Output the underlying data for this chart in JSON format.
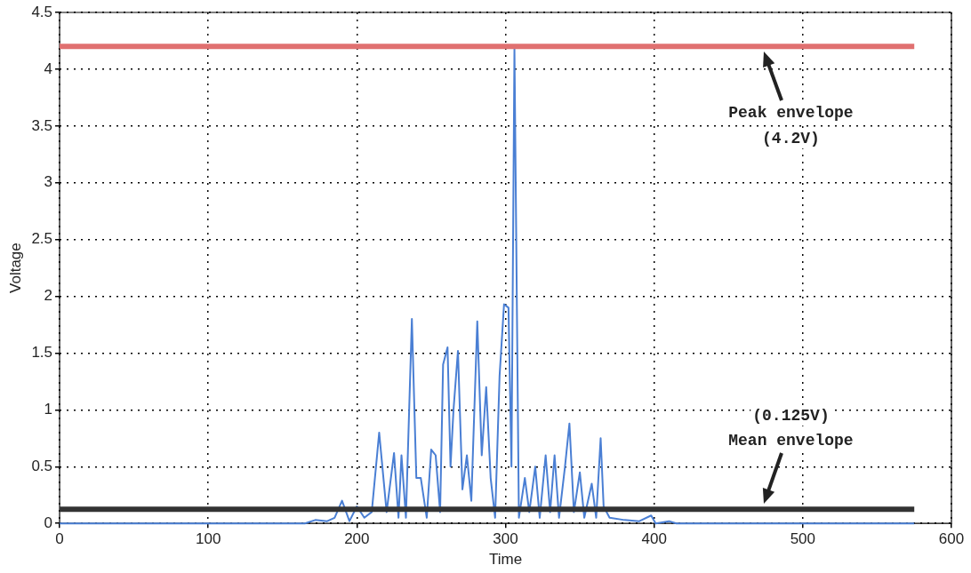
{
  "chart_data": {
    "type": "line",
    "xlabel": "Time",
    "ylabel": "Voltage",
    "xlim": [
      0,
      600
    ],
    "xticks": [
      0,
      100,
      200,
      300,
      400,
      500,
      600
    ],
    "ylim": [
      0,
      4.5
    ],
    "yticks": [
      0,
      0.5,
      1,
      1.5,
      2,
      2.5,
      3,
      3.5,
      4,
      4.5
    ],
    "grid": true,
    "legend": false,
    "marker": "none",
    "line_style": "solid",
    "series": [
      {
        "color": "#4a7fd4",
        "x": [
          0,
          165,
          172,
          180,
          185,
          190,
          195,
          200,
          205,
          210,
          215,
          220,
          225,
          228,
          230,
          233,
          237,
          240,
          243,
          247,
          250,
          253,
          256,
          258,
          261,
          263,
          265,
          268,
          271,
          274,
          277,
          281,
          284,
          287,
          290,
          293,
          296,
          299,
          302,
          304,
          306,
          309,
          313,
          316,
          320,
          323,
          327,
          330,
          333,
          336,
          340,
          343,
          346,
          350,
          353,
          358,
          361,
          364,
          366,
          370,
          380,
          390,
          398,
          401,
          410,
          415,
          575
        ],
        "values": [
          0,
          0,
          0.03,
          0.02,
          0.05,
          0.2,
          0.02,
          0.15,
          0.05,
          0.1,
          0.8,
          0.1,
          0.62,
          0.05,
          0.6,
          0.05,
          1.8,
          0.4,
          0.4,
          0.05,
          0.65,
          0.6,
          0.1,
          1.4,
          1.55,
          0.5,
          1,
          1.52,
          0.3,
          0.6,
          0.2,
          1.78,
          0.6,
          1.2,
          0.4,
          0.05,
          1.3,
          1.93,
          1.9,
          0.5,
          4.18,
          0.05,
          0.4,
          0.1,
          0.5,
          0.05,
          0.6,
          0.1,
          0.6,
          0.05,
          0.5,
          0.88,
          0.1,
          0.45,
          0.05,
          0.35,
          0.05,
          0.75,
          0.15,
          0.05,
          0.03,
          0.02,
          0.07,
          0,
          0.02,
          0,
          0
        ]
      }
    ],
    "ref_lines": [
      {
        "axis": "y",
        "value": 4.2,
        "color": "#e07070"
      },
      {
        "axis": "y",
        "value": 0.125,
        "color": "#333333"
      }
    ],
    "annotations": [
      "Peak envelope",
      "(4.2V)",
      "(0.125V)",
      "Mean envelope"
    ]
  }
}
